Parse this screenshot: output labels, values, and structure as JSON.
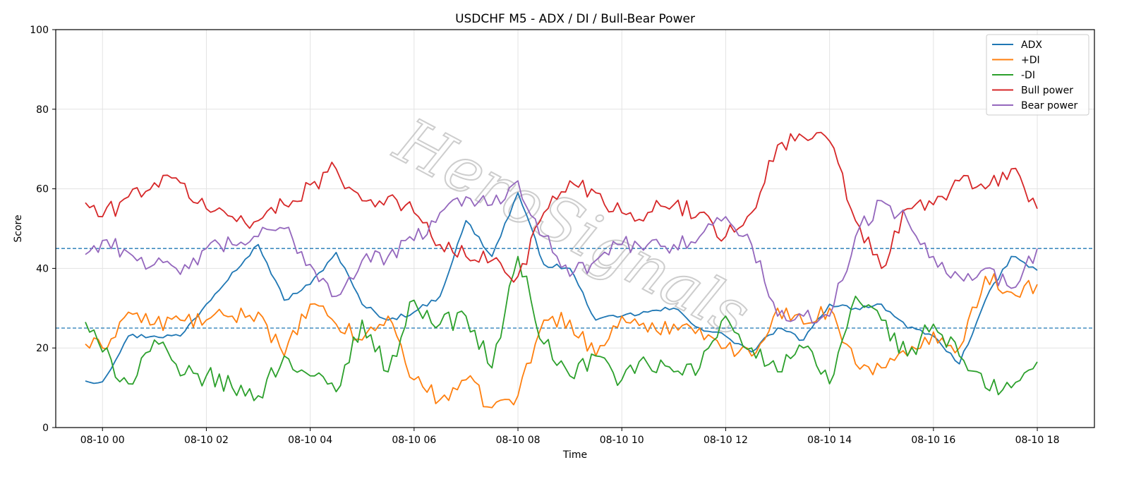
{
  "chart_data": {
    "type": "line",
    "title": "USDCHF M5 - ADX / DI / Bull-Bear Power",
    "xlabel": "Time",
    "ylabel": "Score",
    "ylim": [
      0,
      100
    ],
    "xlim_hours": [
      -0.9,
      19.1
    ],
    "x_ticks": [
      {
        "hour": 0,
        "label": "08-10 00"
      },
      {
        "hour": 2,
        "label": "08-10 02"
      },
      {
        "hour": 4,
        "label": "08-10 04"
      },
      {
        "hour": 6,
        "label": "08-10 06"
      },
      {
        "hour": 8,
        "label": "08-10 08"
      },
      {
        "hour": 10,
        "label": "08-10 10"
      },
      {
        "hour": 12,
        "label": "08-10 12"
      },
      {
        "hour": 14,
        "label": "08-10 14"
      },
      {
        "hour": 16,
        "label": "08-10 16"
      },
      {
        "hour": 18,
        "label": "08-10 18"
      }
    ],
    "y_ticks": [
      0,
      20,
      40,
      60,
      80,
      100
    ],
    "grid": true,
    "legend_position": "top-right",
    "reference_lines": [
      {
        "y": 45,
        "color": "#1f77b4",
        "style": "dashed"
      },
      {
        "y": 25,
        "color": "#1f77b4",
        "style": "dashed"
      }
    ],
    "watermark": "HeroSignals",
    "x_hours": [
      -0.33,
      0,
      0.5,
      1,
      1.5,
      2,
      2.5,
      3,
      3.5,
      4,
      4.5,
      5,
      5.5,
      6,
      6.5,
      7,
      7.5,
      8,
      8.5,
      9,
      9.5,
      10,
      10.5,
      11,
      11.5,
      12,
      12.5,
      13,
      13.5,
      14,
      14.5,
      15,
      15.5,
      16,
      16.5,
      17,
      17.5,
      18
    ],
    "series": [
      {
        "name": "ADX",
        "color": "#1f77b4",
        "values": [
          11.7,
          11.5,
          23,
          23,
          23,
          31,
          39,
          46,
          32,
          36,
          44,
          31,
          27,
          29,
          33,
          52,
          43,
          59,
          41,
          40,
          27,
          28,
          29,
          30,
          25,
          23,
          19,
          25,
          22,
          31,
          30,
          31,
          25,
          23,
          16,
          32,
          43,
          39.5
        ]
      },
      {
        "name": "+DI",
        "color": "#ff7f0e",
        "values": [
          21,
          20,
          29,
          26,
          27,
          27,
          28,
          29,
          18,
          31,
          26,
          22,
          28,
          12,
          7,
          12,
          5,
          8,
          27,
          27,
          18,
          28,
          24,
          26,
          25,
          20,
          18,
          30,
          26,
          30,
          16,
          15,
          18,
          24,
          20,
          38,
          34,
          36
        ]
      },
      {
        "name": "-DI",
        "color": "#2ca02c",
        "values": [
          26.5,
          19,
          11,
          22,
          13,
          13,
          10,
          8,
          18,
          13,
          9,
          27,
          14,
          32,
          26,
          28,
          15,
          43,
          21,
          13,
          18,
          12,
          16,
          14,
          15,
          28,
          20,
          14,
          20,
          11,
          33,
          27,
          18,
          26,
          18,
          10,
          10,
          16.5
        ]
      },
      {
        "name": "Bull power",
        "color": "#d62728",
        "values": [
          56.5,
          53,
          58,
          61.5,
          61.5,
          55,
          53,
          52,
          56,
          61,
          65,
          57,
          58,
          54,
          46,
          43,
          42,
          38,
          54,
          62,
          59,
          54,
          54,
          56,
          54,
          48,
          54,
          71,
          73,
          72,
          52,
          40,
          55,
          56,
          62,
          60,
          65,
          55
        ]
      },
      {
        "name": "Bear power",
        "color": "#9467bd",
        "values": [
          43.5,
          47,
          44,
          41,
          38.5,
          45,
          46,
          48,
          50,
          41,
          33,
          42,
          43,
          47,
          54,
          58,
          56,
          62,
          48,
          38,
          42,
          46,
          46,
          46,
          48,
          53,
          46,
          28,
          28,
          28,
          48,
          57,
          52,
          43,
          38,
          40,
          35,
          45
        ]
      }
    ]
  }
}
